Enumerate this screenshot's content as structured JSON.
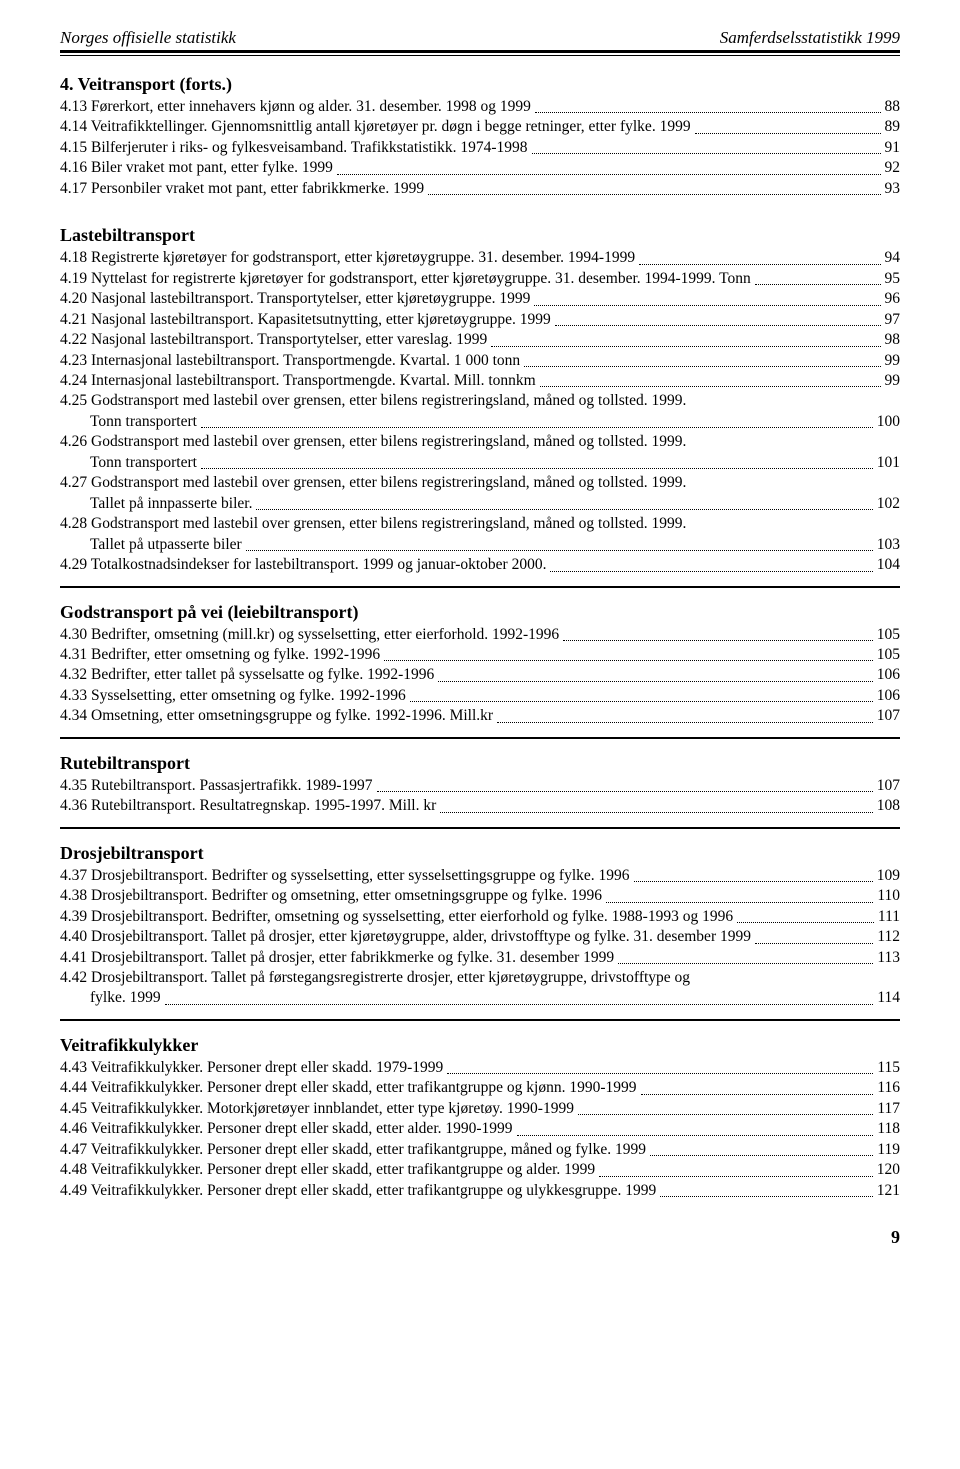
{
  "header": {
    "left": "Norges offisielle statistikk",
    "right": "Samferdselsstatistikk 1999"
  },
  "sections": [
    {
      "title": "4.   Veitransport (forts.)",
      "noRule": true,
      "entries": [
        {
          "text": "4.13 Førerkort, etter innehavers kjønn og alder.  31. desember.  1998 og 1999",
          "page": "88"
        },
        {
          "text": "4.14 Veitrafikktellinger.  Gjennomsnittlig antall kjøretøyer pr. døgn i begge retninger, etter fylke. 1999",
          "page": "89"
        },
        {
          "text": "4.15 Bilferjeruter i riks- og fylkesveisamband.  Trafikkstatistikk.  1974-1998",
          "page": "91"
        },
        {
          "text": "4.16 Biler vraket mot pant, etter fylke.  1999",
          "page": "92"
        },
        {
          "text": "4.17 Personbiler vraket mot pant, etter fabrikkmerke.  1999",
          "page": "93"
        }
      ]
    },
    {
      "title": "Lastebiltransport",
      "noRule": true,
      "entries": [
        {
          "text": "4.18 Registrerte kjøretøyer for godstransport, etter kjøretøygruppe.  31. desember.  1994-1999",
          "page": "94"
        },
        {
          "text": "4.19 Nyttelast for registrerte kjøretøyer for godstransport, etter kjøretøygruppe. 31. desember. 1994-1999. Tonn",
          "page": "95"
        },
        {
          "text": "4.20 Nasjonal lastebiltransport. Transportytelser, etter kjøretøygruppe. 1999",
          "page": "96"
        },
        {
          "text": "4.21 Nasjonal lastebiltransport. Kapasitetsutnytting, etter kjøretøygruppe. 1999",
          "page": "97"
        },
        {
          "text": "4.22 Nasjonal lastebiltransport. Transportytelser, etter vareslag. 1999",
          "page": "98"
        },
        {
          "text": "4.23 Internasjonal lastebiltransport. Transportmengde. Kvartal. 1 000 tonn",
          "page": "99"
        },
        {
          "text": "4.24 Internasjonal lastebiltransport. Transportmengde. Kvartal. Mill. tonnkm",
          "page": "99"
        },
        {
          "first": "4.25 Godstransport med lastebil over grensen, etter bilens registreringsland, måned og tollsted. 1999.",
          "second": "Tonn transportert",
          "page": "100",
          "multiline": true
        },
        {
          "first": "4.26 Godstransport med lastebil over grensen, etter bilens registreringsland, måned og tollsted. 1999.",
          "second": "Tonn transportert",
          "page": "101",
          "multiline": true
        },
        {
          "first": "4.27 Godstransport med lastebil over grensen, etter bilens registreringsland, måned og tollsted. 1999.",
          "second": "Tallet på innpasserte biler.",
          "page": "102",
          "multiline": true
        },
        {
          "first": "4.28 Godstransport med lastebil over grensen, etter bilens registreringsland, måned og tollsted. 1999.",
          "second": "Tallet på utpasserte biler",
          "page": "103",
          "multiline": true
        },
        {
          "text": "4.29 Totalkostnadsindekser for lastebiltransport. 1999 og januar-oktober 2000.",
          "page": "104"
        }
      ]
    },
    {
      "title": "Godstransport på vei (leiebiltransport)",
      "entries": [
        {
          "text": "4.30 Bedrifter, omsetning (mill.kr) og sysselsetting, etter eierforhold.  1992-1996",
          "page": "105"
        },
        {
          "text": "4.31 Bedrifter, etter omsetning og fylke.  1992-1996",
          "page": "105"
        },
        {
          "text": "4.32 Bedrifter, etter tallet på sysselsatte og fylke.  1992-1996",
          "page": "106"
        },
        {
          "text": "4.33 Sysselsetting, etter omsetning og fylke. 1992-1996",
          "page": "106"
        },
        {
          "text": "4.34 Omsetning, etter omsetningsgruppe og fylke. 1992-1996.  Mill.kr",
          "page": "107"
        }
      ]
    },
    {
      "title": "Rutebiltransport",
      "entries": [
        {
          "text": "4.35 Rutebiltransport.  Passasjertrafikk.  1989-1997",
          "page": "107"
        },
        {
          "text": "4.36 Rutebiltransport.  Resultatregnskap.  1995-1997.  Mill. kr",
          "page": "108"
        }
      ]
    },
    {
      "title": "Drosjebiltransport",
      "entries": [
        {
          "text": "4.37 Drosjebiltransport.  Bedrifter og sysselsetting, etter sysselsettingsgruppe og fylke.  1996",
          "page": "109"
        },
        {
          "text": "4.38 Drosjebiltransport.  Bedrifter og omsetning, etter omsetningsgruppe og fylke.  1996",
          "page": "110"
        },
        {
          "text": "4.39 Drosjebiltransport.  Bedrifter, omsetning og sysselsetting, etter eierforhold og fylke. 1988-1993 og 1996",
          "page": "111"
        },
        {
          "text": "4.40 Drosjebiltransport. Tallet på drosjer, etter kjøretøygruppe, alder, drivstofftype og fylke. 31. desember 1999",
          "page": "112"
        },
        {
          "text": "4.41 Drosjebiltransport.  Tallet på drosjer, etter fabrikkmerke og fylke.  31. desember 1999",
          "page": "113"
        },
        {
          "first": "4.42 Drosjebiltransport. Tallet på førstegangsregistrerte drosjer, etter kjøretøygruppe, drivstofftype og",
          "second": "fylke. 1999",
          "page": "114",
          "multiline": true
        }
      ]
    },
    {
      "title": "Veitrafikkulykker",
      "entries": [
        {
          "text": "4.43 Veitrafikkulykker. Personer drept eller skadd.  1979-1999",
          "page": "115"
        },
        {
          "text": "4.44 Veitrafikkulykker. Personer drept eller skadd, etter trafikantgruppe og kjønn.  1990-1999",
          "page": "116"
        },
        {
          "text": "4.45 Veitrafikkulykker. Motorkjøretøyer innblandet, etter type kjøretøy. 1990-1999",
          "page": "117"
        },
        {
          "text": "4.46 Veitrafikkulykker. Personer drept eller skadd, etter alder.  1990-1999",
          "page": "118"
        },
        {
          "text": "4.47 Veitrafikkulykker. Personer drept eller skadd, etter trafikantgruppe, måned og fylke. 1999",
          "page": "119"
        },
        {
          "text": "4.48 Veitrafikkulykker. Personer drept eller skadd, etter trafikantgruppe og alder. 1999",
          "page": "120"
        },
        {
          "text": "4.49 Veitrafikkulykker. Personer drept eller skadd, etter trafikantgruppe og ulykkesgruppe. 1999",
          "page": "121"
        }
      ]
    }
  ],
  "footer": {
    "pageNumber": "9"
  }
}
